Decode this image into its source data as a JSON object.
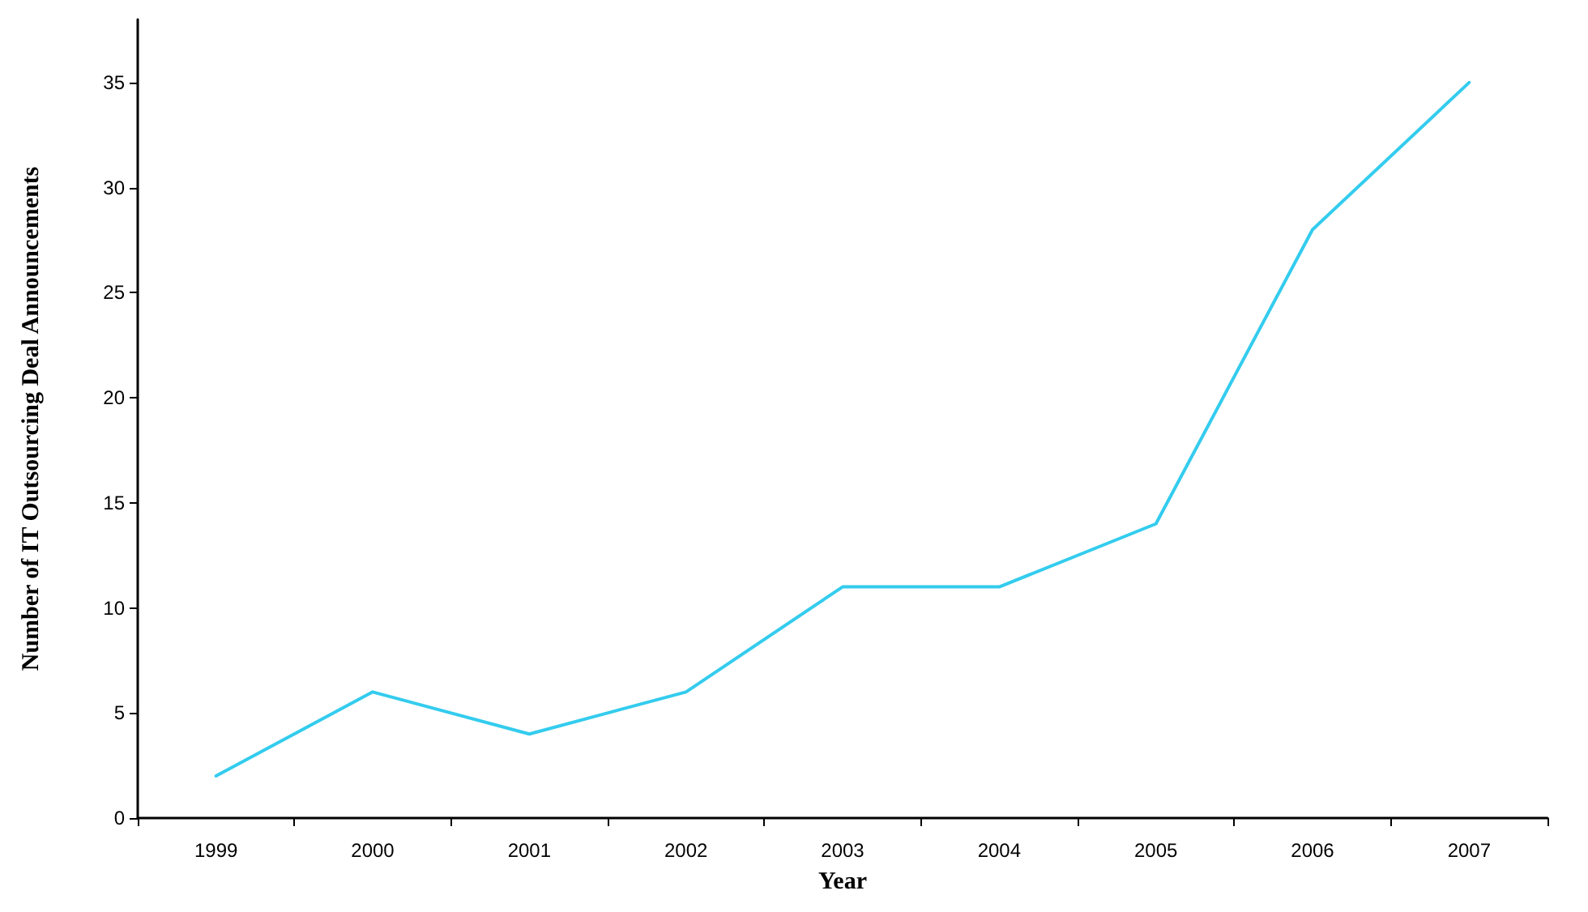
{
  "chart_data": {
    "type": "line",
    "xlabel": "Year",
    "ylabel": "Number of IT Outsourcing Deal Announcements",
    "categories": [
      "1999",
      "2000",
      "2001",
      "2002",
      "2003",
      "2004",
      "2005",
      "2006",
      "2007"
    ],
    "series": [
      {
        "color": "#33ccee",
        "values": [
          2,
          6,
          4,
          6,
          11,
          11,
          14,
          28,
          35
        ]
      }
    ],
    "ylim": [
      0,
      38
    ],
    "yticks": [
      0,
      5,
      10,
      15,
      20,
      25,
      30,
      35
    ],
    "grid": false,
    "marker": "none",
    "line_style": "solid"
  }
}
